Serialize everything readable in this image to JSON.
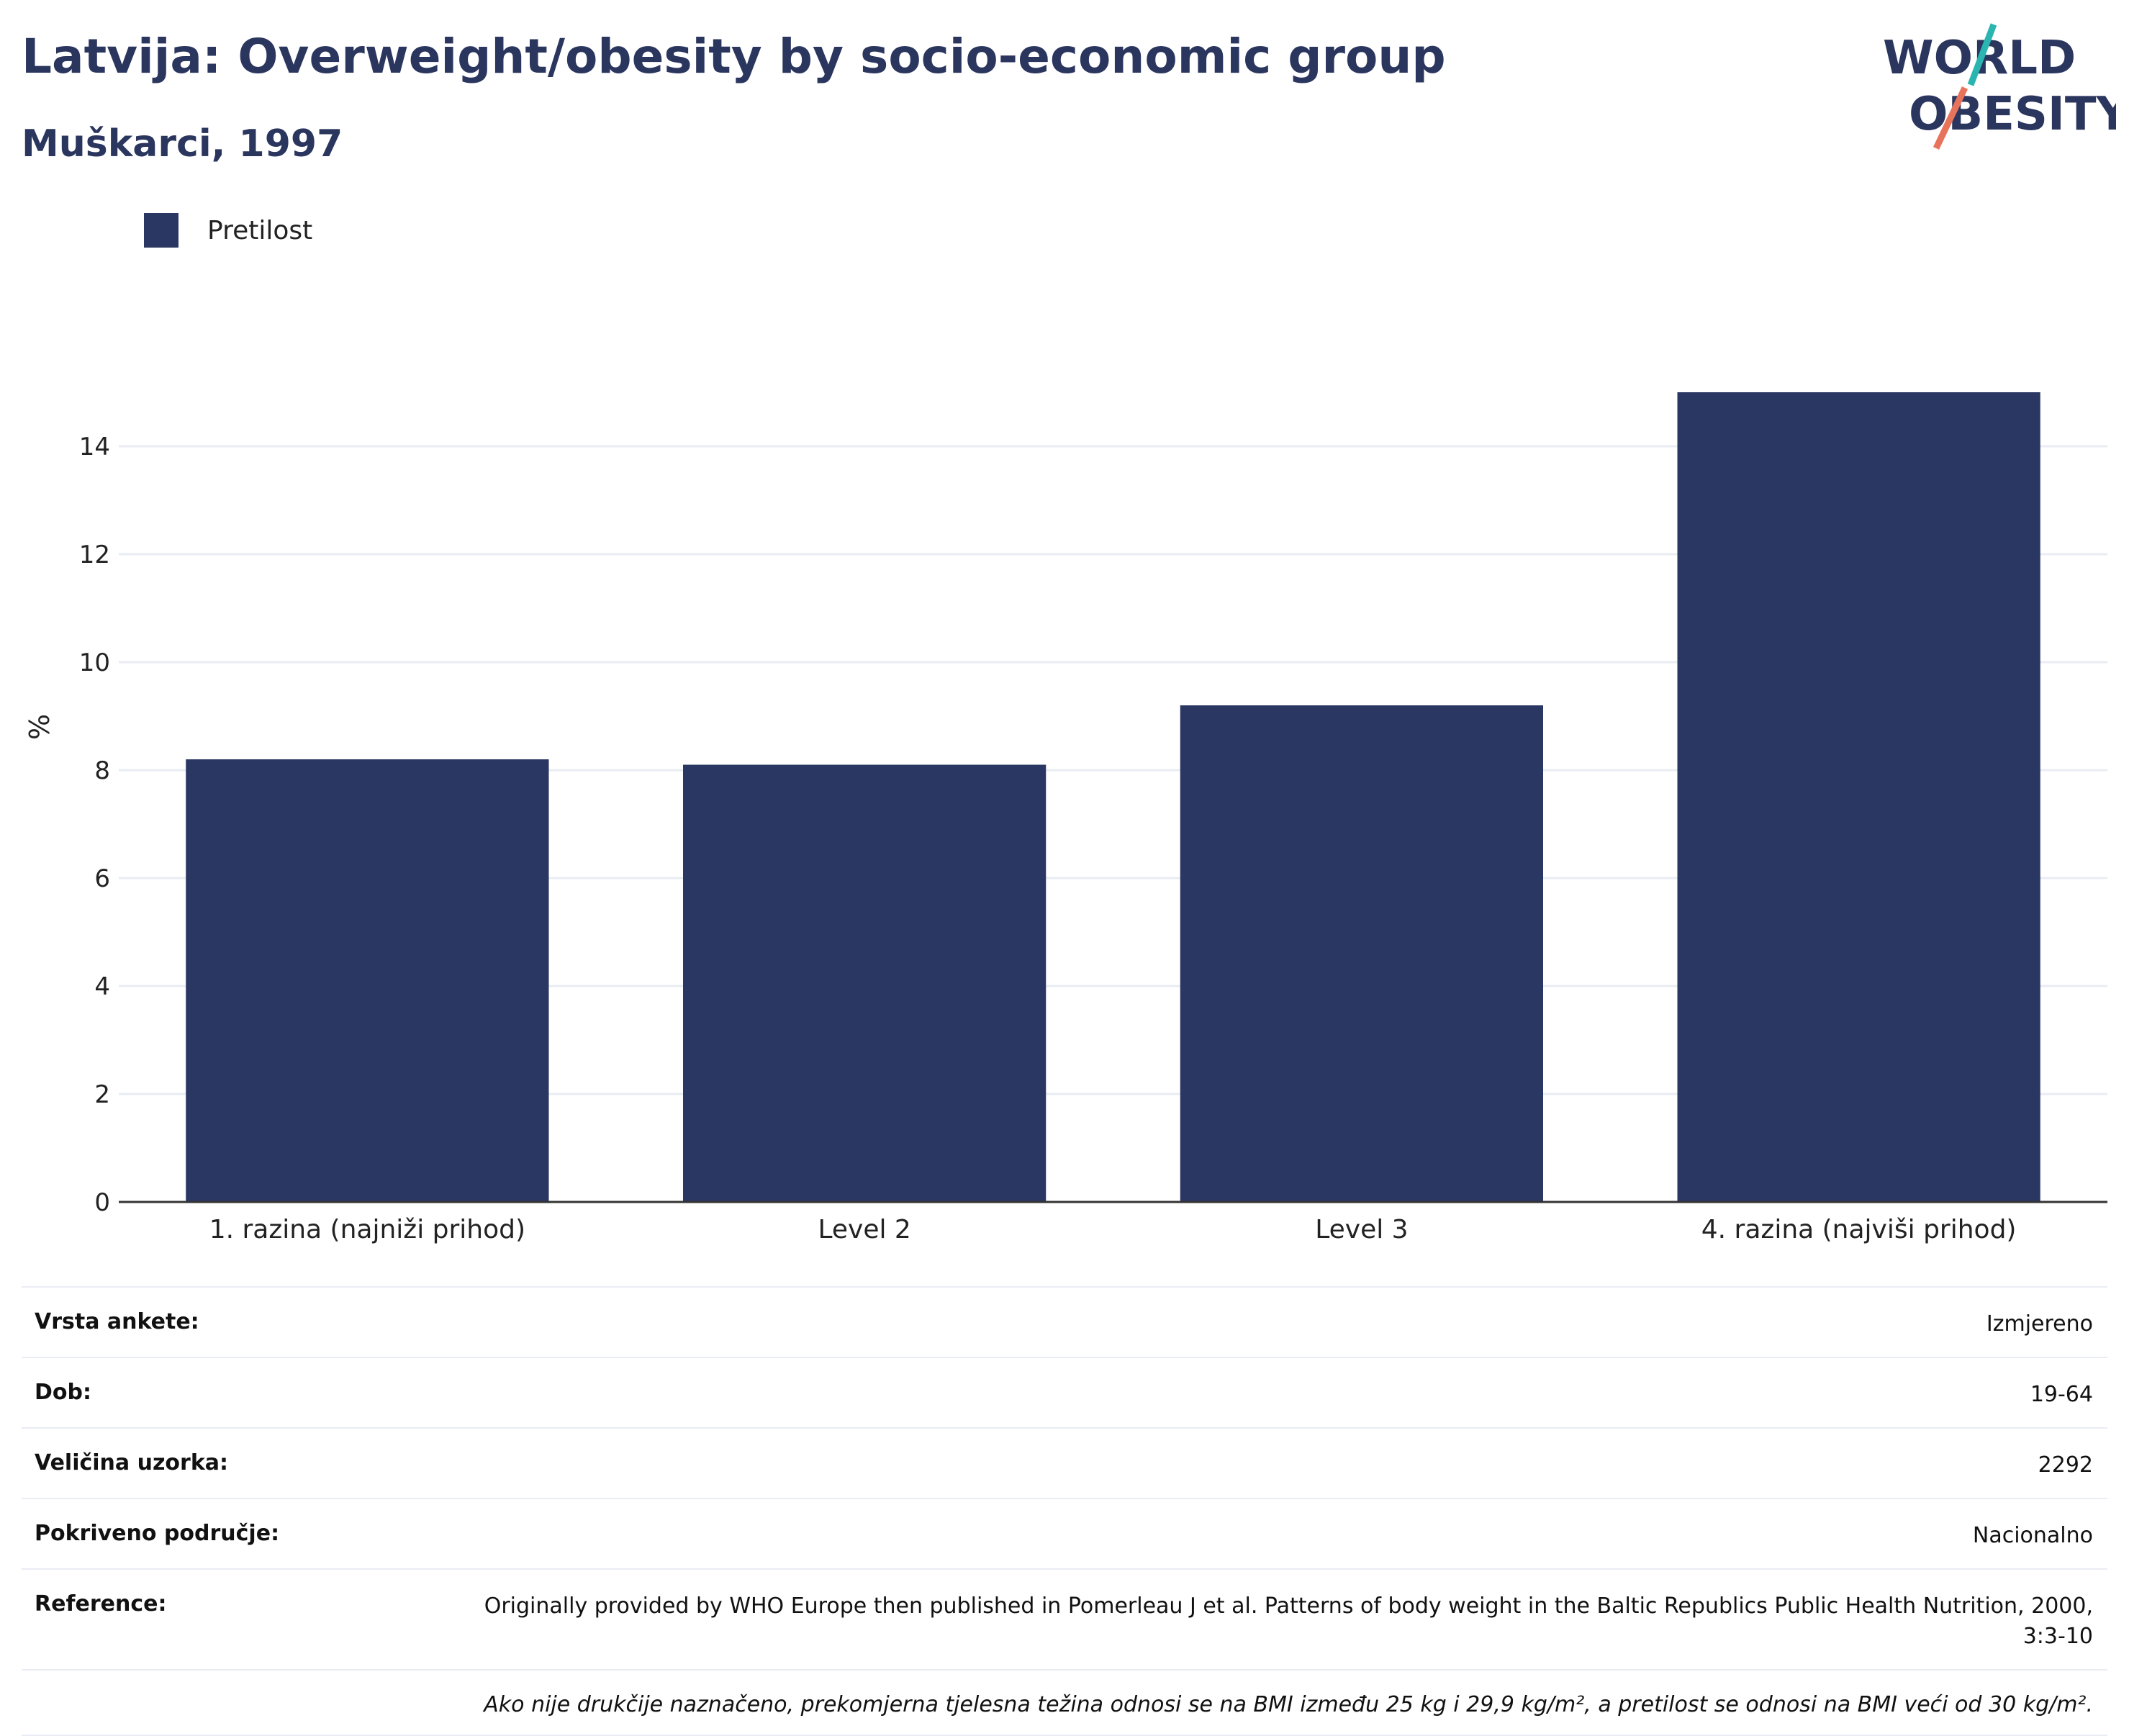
{
  "header": {
    "title": "Latvija: Overweight/obesity by socio-economic group",
    "subtitle": "Muškarci, 1997"
  },
  "logo": {
    "line1": "WORLD",
    "line2": "OBESITY"
  },
  "legend": {
    "items": [
      {
        "label": "Pretilost",
        "color": "#2b3763"
      }
    ]
  },
  "chart_data": {
    "type": "bar",
    "categories": [
      "1. razina (najniži prihod)",
      "Level 2",
      "Level 3",
      "4. razina (najviši prihod)"
    ],
    "series": [
      {
        "name": "Pretilost",
        "values": [
          8.2,
          8.1,
          9.2,
          15.0
        ],
        "color": "#2b3763"
      }
    ],
    "ylabel": "%",
    "ylim": [
      0,
      16
    ],
    "yticks": [
      0,
      2,
      4,
      6,
      8,
      10,
      12,
      14
    ],
    "grid": true
  },
  "info": {
    "rows": [
      {
        "label": "Vrsta ankete:",
        "value": "Izmjereno"
      },
      {
        "label": "Dob:",
        "value": "19-64"
      },
      {
        "label": "Veličina uzorka:",
        "value": "2292"
      },
      {
        "label": "Pokriveno područje:",
        "value": "Nacionalno"
      },
      {
        "label": "Reference:",
        "value": "Originally provided by WHO Europe then published in Pomerleau J et al. Patterns of body weight in the Baltic Republics Public Health Nutrition, 2000, 3:3-10"
      }
    ],
    "footnote": "Ako nije drukčije naznačeno, prekomjerna tjelesna težina odnosi se na BMI između 25 kg i 29,9 kg/m², a pretilost se odnosi na BMI veći od 30 kg/m²."
  }
}
